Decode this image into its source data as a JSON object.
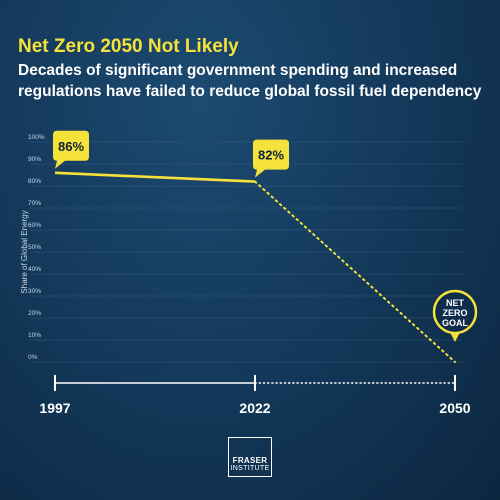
{
  "header": {
    "title": "Net Zero 2050 Not Likely",
    "subtitle": "Decades of significant government spending and increased regulations have failed to reduce global fossil fuel dependency"
  },
  "chart_data": {
    "type": "line",
    "ylabel": "Share of Global Energy",
    "ylim": [
      0,
      100
    ],
    "yticks": [
      "0%",
      "10%",
      "20%",
      "30%",
      "40%",
      "50%",
      "60%",
      "70%",
      "80%",
      "90%",
      "100%"
    ],
    "xticks": [
      "1997",
      "2022",
      "2050"
    ],
    "series": [
      {
        "x": [
          1997,
          2022
        ],
        "values": [
          86,
          82
        ],
        "style": "solid"
      },
      {
        "x": [
          2022,
          2050
        ],
        "values": [
          82,
          0
        ],
        "style": "dotted"
      }
    ],
    "callouts": [
      {
        "x": 1997,
        "y": 86,
        "label": "86%"
      },
      {
        "x": 2022,
        "y": 82,
        "label": "82%"
      },
      {
        "x": 2050,
        "y": 0,
        "label_lines": [
          "NET",
          "ZERO",
          "GOAL"
        ]
      }
    ],
    "colors": {
      "line": "#f5e23a",
      "callout": "#f5e23a",
      "timeline": "#ffffff",
      "grid": "#3f6688"
    }
  },
  "logo": {
    "line1": "FRASER",
    "line2": "INSTITUTE"
  }
}
